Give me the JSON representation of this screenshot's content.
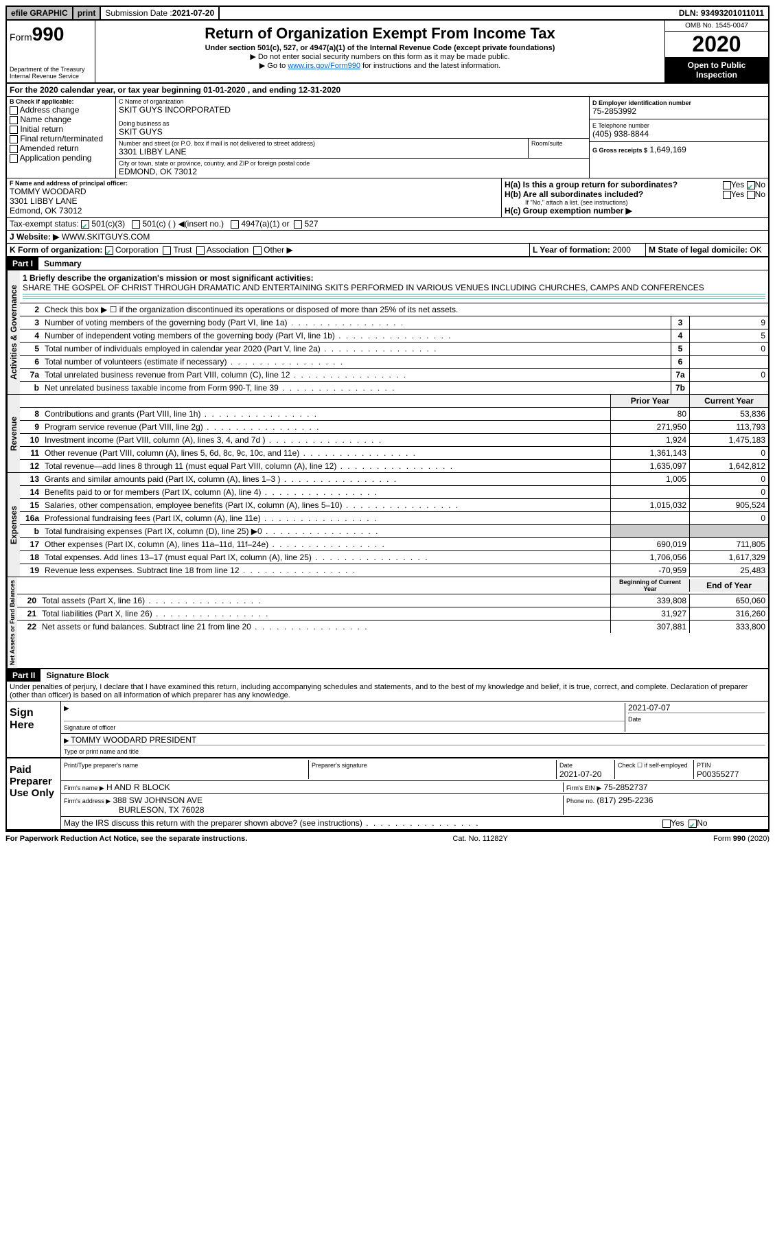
{
  "topbar": {
    "efile": "efile GRAPHIC",
    "print": "print",
    "submission_label": "Submission Date : ",
    "submission_date": "2021-07-20",
    "dln": "DLN: 93493201011011"
  },
  "header": {
    "form_prefix": "Form",
    "form_number": "990",
    "dept1": "Department of the Treasury",
    "dept2": "Internal Revenue Service",
    "title": "Return of Organization Exempt From Income Tax",
    "subtitle": "Under section 501(c), 527, or 4947(a)(1) of the Internal Revenue Code (except private foundations)",
    "note1": "▶ Do not enter social security numbers on this form as it may be made public.",
    "note2_prefix": "▶ Go to ",
    "note2_link": "www.irs.gov/Form990",
    "note2_suffix": " for instructions and the latest information.",
    "omb": "OMB No. 1545-0047",
    "year": "2020",
    "inspection": "Open to Public Inspection"
  },
  "period": "For the 2020 calendar year, or tax year beginning 01-01-2020   , and ending 12-31-2020",
  "sectionB": {
    "label": "B Check if applicable:",
    "items": [
      "Address change",
      "Name change",
      "Initial return",
      "Final return/terminated",
      "Amended return",
      "Application pending"
    ]
  },
  "sectionC": {
    "name_label": "C Name of organization",
    "name": "SKIT GUYS INCORPORATED",
    "dba_label": "Doing business as",
    "dba": "SKIT GUYS",
    "addr_label": "Number and street (or P.O. box if mail is not delivered to street address)",
    "room_label": "Room/suite",
    "addr": "3301 LIBBY LANE",
    "city_label": "City or town, state or province, country, and ZIP or foreign postal code",
    "city": "EDMOND, OK  73012"
  },
  "sectionD": {
    "label": "D Employer identification number",
    "value": "75-2853992"
  },
  "sectionE": {
    "label": "E Telephone number",
    "value": "(405) 938-8844"
  },
  "sectionG": {
    "label": "G Gross receipts $",
    "value": "1,649,169"
  },
  "sectionF": {
    "label": "F Name and address of principal officer:",
    "name": "TOMMY WOODARD",
    "addr1": "3301 LIBBY LANE",
    "addr2": "Edmond, OK  73012"
  },
  "sectionH": {
    "ha": "H(a)  Is this a group return for subordinates?",
    "hb": "H(b)  Are all subordinates included?",
    "hb_note": "If \"No,\" attach a list. (see instructions)",
    "hc": "H(c)  Group exemption number ▶",
    "yes": "Yes",
    "no": "No"
  },
  "taxExempt": {
    "label": "Tax-exempt status:",
    "opt1": "501(c)(3)",
    "opt2": "501(c) (  ) ◀(insert no.)",
    "opt3": "4947(a)(1) or",
    "opt4": "527"
  },
  "website": {
    "label": "J   Website: ▶",
    "value": "WWW.SKITGUYS.COM"
  },
  "sectionK": {
    "label": "K Form of organization:",
    "opts": [
      "Corporation",
      "Trust",
      "Association",
      "Other ▶"
    ]
  },
  "sectionL": {
    "label": "L Year of formation:",
    "value": "2000"
  },
  "sectionM": {
    "label": "M State of legal domicile:",
    "value": "OK"
  },
  "part1": {
    "header": "Part I",
    "title": "Summary",
    "q1_label": "1  Briefly describe the organization's mission or most significant activities:",
    "q1_text": "SHARE THE GOSPEL OF CHRIST THROUGH DRAMATIC AND ENTERTAINING SKITS PERFORMED IN VARIOUS VENUES INCLUDING CHURCHES, CAMPS AND CONFERENCES",
    "vert_activities": "Activities & Governance",
    "vert_revenue": "Revenue",
    "vert_expenses": "Expenses",
    "vert_netassets": "Net Assets or Fund Balances",
    "q2": "Check this box ▶ ☐  if the organization discontinued its operations or disposed of more than 25% of its net assets.",
    "lines_gov": [
      {
        "n": "3",
        "d": "Number of voting members of the governing body (Part VI, line 1a)",
        "box": "3",
        "v": "9"
      },
      {
        "n": "4",
        "d": "Number of independent voting members of the governing body (Part VI, line 1b)",
        "box": "4",
        "v": "5"
      },
      {
        "n": "5",
        "d": "Total number of individuals employed in calendar year 2020 (Part V, line 2a)",
        "box": "5",
        "v": "0"
      },
      {
        "n": "6",
        "d": "Total number of volunteers (estimate if necessary)",
        "box": "6",
        "v": ""
      },
      {
        "n": "7a",
        "d": "Total unrelated business revenue from Part VIII, column (C), line 12",
        "box": "7a",
        "v": "0"
      },
      {
        "n": "b",
        "d": "Net unrelated business taxable income from Form 990-T, line 39",
        "box": "7b",
        "v": ""
      }
    ],
    "col_prior": "Prior Year",
    "col_current": "Current Year",
    "lines_rev": [
      {
        "n": "8",
        "d": "Contributions and grants (Part VIII, line 1h)",
        "p": "80",
        "c": "53,836"
      },
      {
        "n": "9",
        "d": "Program service revenue (Part VIII, line 2g)",
        "p": "271,950",
        "c": "113,793"
      },
      {
        "n": "10",
        "d": "Investment income (Part VIII, column (A), lines 3, 4, and 7d )",
        "p": "1,924",
        "c": "1,475,183"
      },
      {
        "n": "11",
        "d": "Other revenue (Part VIII, column (A), lines 5, 6d, 8c, 9c, 10c, and 11e)",
        "p": "1,361,143",
        "c": "0"
      },
      {
        "n": "12",
        "d": "Total revenue—add lines 8 through 11 (must equal Part VIII, column (A), line 12)",
        "p": "1,635,097",
        "c": "1,642,812"
      }
    ],
    "lines_exp": [
      {
        "n": "13",
        "d": "Grants and similar amounts paid (Part IX, column (A), lines 1–3 )",
        "p": "1,005",
        "c": "0"
      },
      {
        "n": "14",
        "d": "Benefits paid to or for members (Part IX, column (A), line 4)",
        "p": "",
        "c": "0"
      },
      {
        "n": "15",
        "d": "Salaries, other compensation, employee benefits (Part IX, column (A), lines 5–10)",
        "p": "1,015,032",
        "c": "905,524"
      },
      {
        "n": "16a",
        "d": "Professional fundraising fees (Part IX, column (A), line 11e)",
        "p": "",
        "c": "0"
      },
      {
        "n": "b",
        "d": "Total fundraising expenses (Part IX, column (D), line 25) ▶0",
        "p": "grey",
        "c": "grey"
      },
      {
        "n": "17",
        "d": "Other expenses (Part IX, column (A), lines 11a–11d, 11f–24e)",
        "p": "690,019",
        "c": "711,805"
      },
      {
        "n": "18",
        "d": "Total expenses. Add lines 13–17 (must equal Part IX, column (A), line 25)",
        "p": "1,706,056",
        "c": "1,617,329"
      },
      {
        "n": "19",
        "d": "Revenue less expenses. Subtract line 18 from line 12",
        "p": "-70,959",
        "c": "25,483"
      }
    ],
    "col_begin": "Beginning of Current Year",
    "col_end": "End of Year",
    "lines_net": [
      {
        "n": "20",
        "d": "Total assets (Part X, line 16)",
        "p": "339,808",
        "c": "650,060"
      },
      {
        "n": "21",
        "d": "Total liabilities (Part X, line 26)",
        "p": "31,927",
        "c": "316,260"
      },
      {
        "n": "22",
        "d": "Net assets or fund balances. Subtract line 21 from line 20",
        "p": "307,881",
        "c": "333,800"
      }
    ]
  },
  "part2": {
    "header": "Part II",
    "title": "Signature Block",
    "declaration": "Under penalties of perjury, I declare that I have examined this return, including accompanying schedules and statements, and to the best of my knowledge and belief, it is true, correct, and complete. Declaration of preparer (other than officer) is based on all information of which preparer has any knowledge."
  },
  "sign": {
    "label": "Sign Here",
    "sig_label": "Signature of officer",
    "date_label": "Date",
    "date": "2021-07-07",
    "name": "TOMMY WOODARD  PRESIDENT",
    "name_label": "Type or print name and title"
  },
  "preparer": {
    "label": "Paid Preparer Use Only",
    "print_label": "Print/Type preparer's name",
    "sig_label": "Preparer's signature",
    "date_label": "Date",
    "date": "2021-07-20",
    "check_label": "Check ☐ if self-employed",
    "ptin_label": "PTIN",
    "ptin": "P00355277",
    "firm_name_label": "Firm's name    ▶",
    "firm_name": "H AND R BLOCK",
    "firm_ein_label": "Firm's EIN ▶",
    "firm_ein": "75-2852737",
    "firm_addr_label": "Firm's address ▶",
    "firm_addr1": "388 SW JOHNSON AVE",
    "firm_addr2": "BURLESON, TX  76028",
    "phone_label": "Phone no.",
    "phone": "(817) 295-2236",
    "discuss": "May the IRS discuss this return with the preparer shown above? (see instructions)",
    "yes": "Yes",
    "no": "No"
  },
  "footer": {
    "left": "For Paperwork Reduction Act Notice, see the separate instructions.",
    "mid": "Cat. No. 11282Y",
    "right": "Form 990 (2020)"
  }
}
